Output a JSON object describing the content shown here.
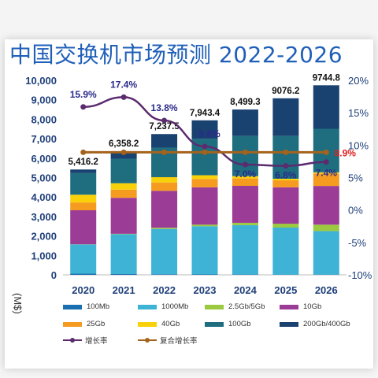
{
  "title": "中国交换机市场预测  2022-2026",
  "unit_label": "(M$)",
  "chart_data": {
    "type": "bar",
    "stacked": true,
    "categories": [
      "2020",
      "2021",
      "2022",
      "2023",
      "2024",
      "2025",
      "2026"
    ],
    "ylim": [
      0,
      10000
    ],
    "yticks": [
      "0",
      "1,000",
      "2,000",
      "3,000",
      "4,000",
      "5,000",
      "6,000",
      "7,000",
      "8,000",
      "9,000",
      "10,000"
    ],
    "y2lim": [
      -10,
      20
    ],
    "y2ticks": [
      "-10%",
      "-5%",
      "0%",
      "5%",
      "10%",
      "15%",
      "20%"
    ],
    "grid": false,
    "legend_position": "bottom",
    "series": [
      {
        "name": "100Mb",
        "color": "#1a6fb0",
        "values": [
          60,
          40,
          30,
          20,
          15,
          10,
          10
        ]
      },
      {
        "name": "1000Mb",
        "color": "#3eb3d6",
        "values": [
          1500,
          2050,
          2330,
          2480,
          2540,
          2420,
          2240
        ]
      },
      {
        "name": "2.5Gb/5Gb",
        "color": "#9bc93f",
        "values": [
          10,
          20,
          60,
          80,
          120,
          200,
          330
        ]
      },
      {
        "name": "10Gb",
        "color": "#9b3c96",
        "values": [
          1750,
          1850,
          1900,
          1920,
          1900,
          1870,
          1990
        ]
      },
      {
        "name": "25Gb",
        "color": "#f59b20",
        "values": [
          400,
          420,
          430,
          430,
          380,
          360,
          640
        ]
      },
      {
        "name": "40Gb",
        "color": "#f9d10a",
        "values": [
          400,
          330,
          270,
          190,
          120,
          80,
          60
        ]
      },
      {
        "name": "100Gb",
        "color": "#1e6e80",
        "values": [
          1110,
          1260,
          1520,
          1870,
          2060,
          2200,
          2240
        ]
      },
      {
        "name": "200Gb/400Gb",
        "color": "#1a4270",
        "values": [
          186.2,
          388.2,
          697.5,
          953.4,
          1364.3,
          1936.2,
          2234.8
        ]
      }
    ],
    "totals": [
      5416.2,
      6358.2,
      7237.5,
      7943.4,
      8499.3,
      9076.2,
      9744.8
    ],
    "total_labels": [
      "5,416.2",
      "6,358.2",
      "7,237.5",
      "7,943.4",
      "8,499.3",
      "9076.2",
      "9744.8"
    ],
    "lines": [
      {
        "name": "增长率",
        "color": "#5b2b6e",
        "values": [
          15.9,
          17.4,
          13.8,
          9.8,
          7.0,
          6.8,
          7.4
        ],
        "labels": [
          "15.9%",
          "17.4%",
          "13.8%",
          "9.8%",
          "7.0%",
          "6.8%",
          "7.4%"
        ]
      },
      {
        "name": "复合增长率",
        "color": "#a4631c",
        "values": [
          8.9,
          8.9,
          8.9,
          8.9,
          8.9,
          8.9,
          8.9
        ],
        "labels": [
          "",
          "",
          "",
          "",
          "",
          "",
          "8.9%"
        ],
        "label_color": "#e02020"
      }
    ]
  }
}
